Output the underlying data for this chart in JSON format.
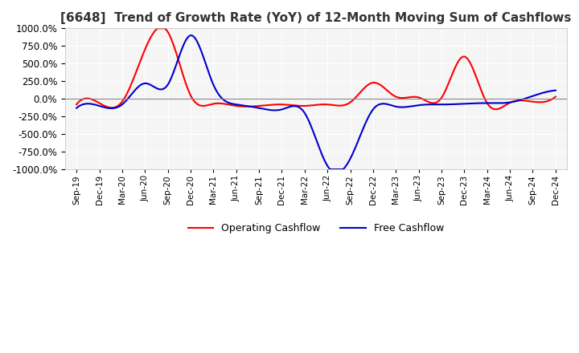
{
  "title": "[6648]  Trend of Growth Rate (YoY) of 12-Month Moving Sum of Cashflows",
  "title_fontsize": 11,
  "ylim": [
    -1000,
    1000
  ],
  "yticks": [
    -1000,
    -750,
    -500,
    -250,
    0,
    250,
    500,
    750,
    1000
  ],
  "background_color": "#ffffff",
  "plot_bg_color": "#f5f5f5",
  "grid_color": "#ffffff",
  "operating_color": "#ff0000",
  "free_color": "#0000cc",
  "legend_labels": [
    "Operating Cashflow",
    "Free Cashflow"
  ],
  "x_labels": [
    "Sep-19",
    "Dec-19",
    "Mar-20",
    "Jun-20",
    "Sep-20",
    "Dec-20",
    "Mar-21",
    "Jun-21",
    "Sep-21",
    "Dec-21",
    "Mar-22",
    "Jun-22",
    "Sep-22",
    "Dec-22",
    "Mar-23",
    "Jun-23",
    "Sep-23",
    "Dec-23",
    "Mar-24",
    "Jun-24",
    "Sep-24",
    "Dec-24"
  ],
  "operating_cashflow": [
    -80,
    -60,
    -40,
    700,
    950,
    50,
    -70,
    -100,
    -100,
    -80,
    -100,
    -80,
    -50,
    230,
    30,
    20,
    15,
    600,
    -60,
    -55,
    -40,
    30
  ],
  "free_cashflow": [
    -130,
    -100,
    -80,
    220,
    200,
    900,
    200,
    -80,
    -130,
    -150,
    -200,
    -950,
    -850,
    -150,
    -110,
    -90,
    -80,
    -70,
    -60,
    -50,
    40,
    120
  ]
}
